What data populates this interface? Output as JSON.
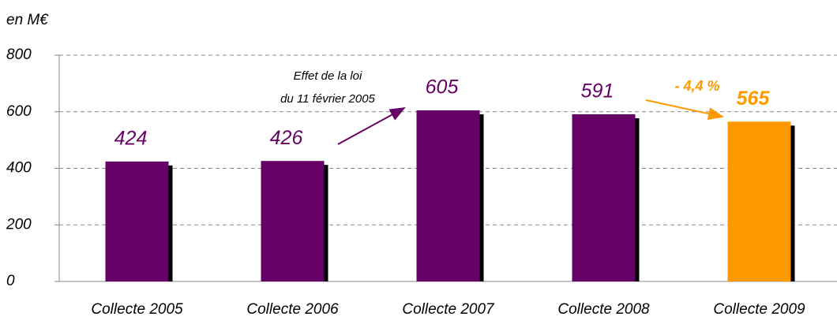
{
  "chart_data": {
    "type": "bar",
    "y_label": "en M€",
    "categories": [
      "Collecte 2005",
      "Collecte 2006",
      "Collecte 2007",
      "Collecte 2008",
      "Collecte 2009"
    ],
    "values": [
      424,
      426,
      605,
      591,
      565
    ],
    "colors": [
      "#660066",
      "#660066",
      "#660066",
      "#660066",
      "#ff9900"
    ],
    "ylim": [
      0,
      800
    ],
    "yticks": [
      0,
      200,
      400,
      600,
      800
    ],
    "grid": true,
    "annotations": [
      "Effet de la loi",
      "du 11 février 2005",
      "- 4,4 %"
    ]
  }
}
